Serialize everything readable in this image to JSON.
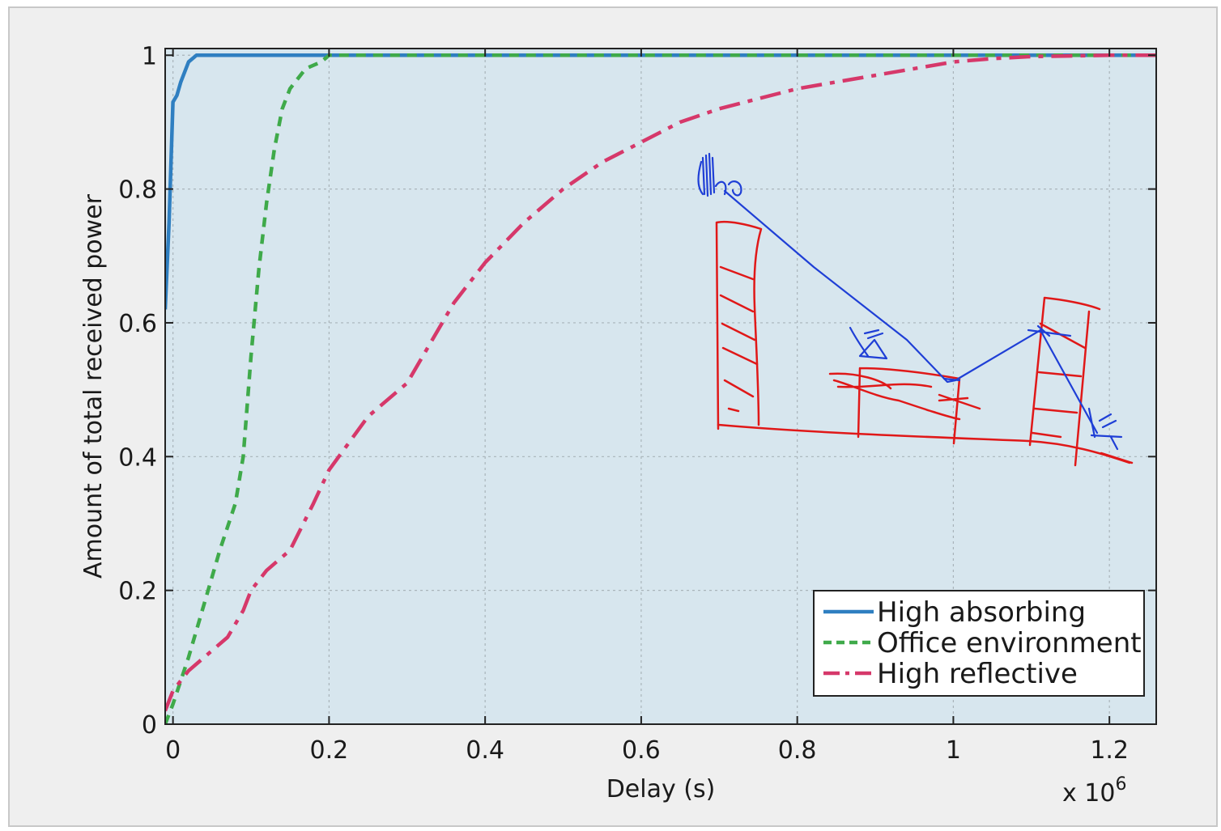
{
  "chart_data": {
    "type": "line",
    "title": "",
    "xlabel": "Delay (s)",
    "ylabel": "Amount of total received power",
    "x_multiplier": "x 10",
    "x_multiplier_exp": "6",
    "xlim": [
      -0.01,
      1.26
    ],
    "ylim": [
      0,
      1.01
    ],
    "xticks": [
      0,
      0.2,
      0.4,
      0.6,
      0.8,
      1,
      1.2
    ],
    "xtick_labels": [
      "0",
      "0.2",
      "0.4",
      "0.6",
      "0.8",
      "1",
      "1.2"
    ],
    "yticks": [
      0,
      0.2,
      0.4,
      0.6,
      0.8,
      1
    ],
    "ytick_labels": [
      "0",
      "0.2",
      "0.4",
      "0.6",
      "0.8",
      "1"
    ],
    "grid": true,
    "legend_position": "bottom-right",
    "background": "#d7e6ee",
    "series": [
      {
        "name": "High absorbing",
        "color": "#2f7fc1",
        "style": "solid",
        "x": [
          -0.01,
          -0.005,
          0.0,
          0.005,
          0.01,
          0.02,
          0.03,
          0.05,
          0.1,
          0.2,
          0.4,
          0.6,
          0.8,
          1.0,
          1.2,
          1.26
        ],
        "y": [
          0.62,
          0.75,
          0.93,
          0.94,
          0.96,
          0.99,
          1.0,
          1.0,
          1.0,
          1.0,
          1.0,
          1.0,
          1.0,
          1.0,
          1.0,
          1.0
        ]
      },
      {
        "name": "Office environment",
        "color": "#3faa4a",
        "style": "dashed",
        "x": [
          -0.01,
          0.0,
          0.02,
          0.04,
          0.06,
          0.08,
          0.09,
          0.1,
          0.11,
          0.12,
          0.13,
          0.14,
          0.15,
          0.17,
          0.19,
          0.2,
          0.22,
          0.3,
          0.5,
          0.8,
          1.0,
          1.26
        ],
        "y": [
          0.0,
          0.03,
          0.1,
          0.18,
          0.26,
          0.33,
          0.4,
          0.55,
          0.68,
          0.78,
          0.86,
          0.92,
          0.95,
          0.98,
          0.99,
          1.0,
          1.0,
          1.0,
          1.0,
          1.0,
          1.0,
          1.0
        ]
      },
      {
        "name": "High reflective",
        "color": "#d6386a",
        "style": "dashdot",
        "x": [
          -0.01,
          0.0,
          0.02,
          0.05,
          0.07,
          0.09,
          0.1,
          0.12,
          0.15,
          0.18,
          0.2,
          0.25,
          0.3,
          0.33,
          0.36,
          0.4,
          0.45,
          0.5,
          0.55,
          0.6,
          0.65,
          0.7,
          0.75,
          0.8,
          0.85,
          0.9,
          0.95,
          1.0,
          1.05,
          1.1,
          1.15,
          1.2,
          1.26
        ],
        "y": [
          0.02,
          0.05,
          0.08,
          0.11,
          0.13,
          0.17,
          0.2,
          0.23,
          0.26,
          0.33,
          0.38,
          0.46,
          0.51,
          0.57,
          0.63,
          0.69,
          0.75,
          0.8,
          0.84,
          0.87,
          0.9,
          0.92,
          0.935,
          0.95,
          0.96,
          0.97,
          0.98,
          0.99,
          0.995,
          0.998,
          0.999,
          1.0,
          1.0
        ]
      }
    ]
  },
  "overlay": {
    "annotation": "hand-drawn sketch of a signal path between buildings",
    "pen_blue": "#1f3fd6",
    "pen_red": "#e01818"
  }
}
